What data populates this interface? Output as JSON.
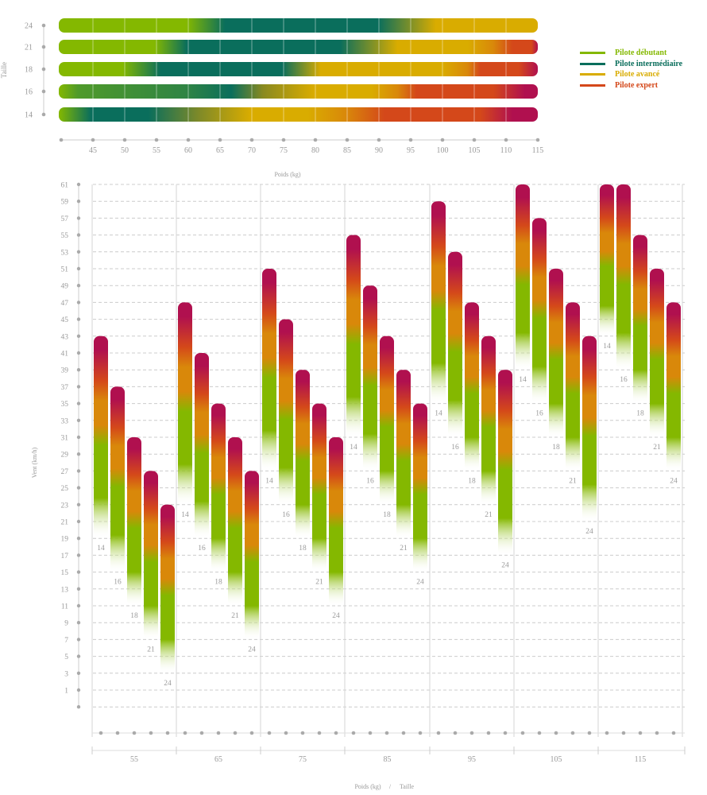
{
  "colors": {
    "green": "#84b800",
    "teal": "#0a6e5c",
    "yellow": "#d9ac00",
    "orange": "#d9880a",
    "red": "#d4481a",
    "crimson": "#b0104f"
  },
  "legend": [
    {
      "label": "Pilote débutant",
      "color": "#84b800"
    },
    {
      "label": "Pilote intermédiaire",
      "color": "#0a6e5c"
    },
    {
      "label": "Pilote avancé",
      "color": "#d9ac00"
    },
    {
      "label": "Pilote expert",
      "color": "#d4481a"
    }
  ],
  "chart_data": [
    {
      "type": "heatmap",
      "xlabel": "Poids (kg)",
      "ylabel": "Taille",
      "xlim": [
        40,
        115
      ],
      "x_ticks": [
        45,
        50,
        55,
        60,
        65,
        70,
        75,
        80,
        85,
        90,
        95,
        100,
        105,
        110,
        115
      ],
      "rows": [
        {
          "taille": "24",
          "stops": [
            [
              40,
              "green"
            ],
            [
              60,
              "green"
            ],
            [
              66,
              "teal"
            ],
            [
              90,
              "teal"
            ],
            [
              99,
              "yellow"
            ],
            [
              115,
              "yellow"
            ]
          ]
        },
        {
          "taille": "21",
          "stops": [
            [
              40,
              "green"
            ],
            [
              55,
              "green"
            ],
            [
              60,
              "teal"
            ],
            [
              84,
              "teal"
            ],
            [
              93,
              "yellow"
            ],
            [
              104,
              "yellow"
            ],
            [
              108,
              "orange"
            ],
            [
              111,
              "red"
            ],
            [
              114,
              "red"
            ],
            [
              115,
              "crimson"
            ]
          ]
        },
        {
          "taille": "18",
          "stops": [
            [
              40,
              "green"
            ],
            [
              50,
              "green"
            ],
            [
              56,
              "teal"
            ],
            [
              75,
              "teal"
            ],
            [
              81,
              "yellow"
            ],
            [
              100,
              "yellow"
            ],
            [
              104,
              "orange"
            ],
            [
              106,
              "red"
            ],
            [
              112,
              "red"
            ],
            [
              115,
              "crimson"
            ]
          ]
        },
        {
          "taille": "16",
          "stops": [
            [
              40,
              "green"
            ],
            [
              43,
              "#4f9a2a"
            ],
            [
              60,
              "#2f8444"
            ],
            [
              67,
              "teal"
            ],
            [
              72,
              "#8a8a20"
            ],
            [
              80,
              "yellow"
            ],
            [
              89,
              "yellow"
            ],
            [
              93,
              "orange"
            ],
            [
              96,
              "red"
            ],
            [
              108,
              "red"
            ],
            [
              113,
              "crimson"
            ],
            [
              115,
              "crimson"
            ]
          ]
        },
        {
          "taille": "14",
          "stops": [
            [
              40,
              "green"
            ],
            [
              45,
              "teal"
            ],
            [
              54,
              "teal"
            ],
            [
              62,
              "#7f8a28"
            ],
            [
              70,
              "yellow"
            ],
            [
              79,
              "yellow"
            ],
            [
              85,
              "orange"
            ],
            [
              91,
              "red"
            ],
            [
              106,
              "red"
            ],
            [
              111,
              "crimson"
            ],
            [
              115,
              "crimson"
            ]
          ]
        }
      ]
    },
    {
      "type": "bar",
      "xlabel": "Poids (kg)",
      "xlabel_sep": "/",
      "xlabel2": "Taille",
      "ylabel": "Vent (km/h)",
      "ylim": [
        -1,
        61
      ],
      "y_ticks": [
        61,
        59,
        57,
        55,
        53,
        51,
        49,
        47,
        45,
        43,
        41,
        39,
        37,
        35,
        33,
        31,
        29,
        27,
        25,
        23,
        21,
        19,
        17,
        15,
        13,
        11,
        9,
        7,
        5,
        3,
        1
      ],
      "grid": true,
      "categories": [
        "55",
        "65",
        "75",
        "85",
        "95",
        "105",
        "115"
      ],
      "tailles": [
        "14",
        "16",
        "18",
        "21",
        "24"
      ],
      "ranges": [
        [
          [
            19,
            43
          ],
          [
            15,
            37
          ],
          [
            11,
            31
          ],
          [
            7,
            27
          ],
          [
            3,
            23
          ]
        ],
        [
          [
            23,
            47
          ],
          [
            19,
            41
          ],
          [
            15,
            35
          ],
          [
            11,
            31
          ],
          [
            7,
            27
          ]
        ],
        [
          [
            27,
            51
          ],
          [
            23,
            45
          ],
          [
            19,
            39
          ],
          [
            15,
            35
          ],
          [
            11,
            31
          ]
        ],
        [
          [
            31,
            55
          ],
          [
            27,
            49
          ],
          [
            23,
            43
          ],
          [
            19,
            39
          ],
          [
            15,
            35
          ]
        ],
        [
          [
            35,
            59
          ],
          [
            31,
            53
          ],
          [
            27,
            47
          ],
          [
            23,
            43
          ],
          [
            17,
            39
          ]
        ],
        [
          [
            39,
            61
          ],
          [
            35,
            57
          ],
          [
            31,
            51
          ],
          [
            27,
            47
          ],
          [
            21,
            43
          ]
        ],
        [
          [
            43,
            61
          ],
          [
            39,
            61
          ],
          [
            35,
            55
          ],
          [
            31,
            51
          ],
          [
            27,
            47
          ]
        ]
      ]
    }
  ]
}
